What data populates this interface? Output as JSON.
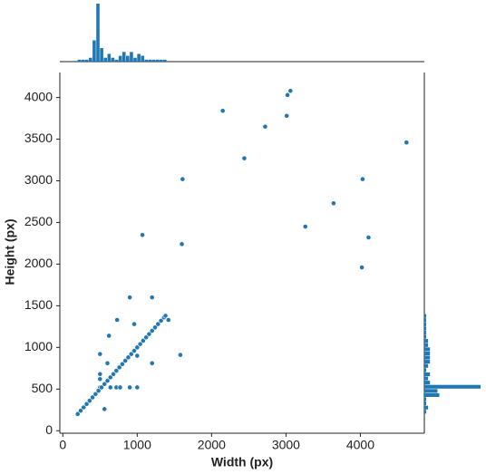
{
  "chart_data": {
    "type": "scatter",
    "x_label": "Width (px)",
    "y_label": "Height (px)",
    "color": "#1f77b4",
    "xlim": [
      -40,
      4860
    ],
    "ylim": [
      -30,
      4300
    ],
    "xticks": [
      0,
      1000,
      2000,
      3000,
      4000
    ],
    "yticks": [
      0,
      500,
      1000,
      1500,
      2000,
      2500,
      3000,
      3500,
      4000
    ],
    "x": [
      2150,
      3060,
      3020,
      3010,
      2720,
      2440,
      4620,
      1610,
      4030,
      3640,
      3260,
      1070,
      4110,
      1600,
      4020,
      900,
      1200,
      730,
      960,
      1420,
      500,
      1580,
      620,
      1200,
      600,
      1000,
      500,
      640,
      720,
      770,
      900,
      1000,
      560,
      500,
      500,
      200,
      240,
      280,
      320,
      360,
      400,
      440,
      480,
      520,
      560,
      600,
      640,
      680,
      720,
      760,
      800,
      840,
      880,
      920,
      960,
      1000,
      1040,
      1080,
      1120,
      1160,
      1200,
      1240,
      1280,
      1320,
      1360,
      1380
    ],
    "y": [
      3840,
      4080,
      4030,
      3780,
      3650,
      3270,
      3460,
      3020,
      3020,
      2730,
      2450,
      2350,
      2320,
      2240,
      1960,
      1600,
      1600,
      1330,
      1280,
      1330,
      920,
      910,
      1140,
      810,
      810,
      900,
      520,
      520,
      520,
      520,
      520,
      520,
      260,
      620,
      680,
      200,
      240,
      280,
      320,
      360,
      400,
      440,
      480,
      520,
      560,
      600,
      640,
      680,
      720,
      760,
      800,
      840,
      880,
      920,
      960,
      1000,
      1040,
      1080,
      1120,
      1160,
      1200,
      1240,
      1280,
      1320,
      1360,
      1380
    ],
    "x_hist": {
      "bins": [
        200,
        250,
        300,
        350,
        400,
        450,
        500,
        550,
        600,
        650,
        700,
        750,
        800,
        850,
        900,
        950,
        1000,
        1050,
        1100,
        1150,
        1200,
        1250,
        1300,
        1350,
        1400
      ],
      "counts": [
        1,
        1,
        1,
        2,
        11,
        30,
        7,
        2,
        4,
        2,
        1,
        3,
        5,
        3,
        5,
        2,
        4,
        3,
        1,
        1,
        1,
        1,
        1,
        1
      ]
    },
    "y_hist": {
      "bins": [
        200,
        250,
        300,
        350,
        400,
        450,
        500,
        550,
        600,
        650,
        700,
        750,
        800,
        850,
        900,
        950,
        1000,
        1050,
        1100,
        1150,
        1200,
        1250,
        1300,
        1350,
        1400
      ],
      "counts": [
        1,
        2,
        1,
        1,
        8,
        7,
        30,
        3,
        2,
        3,
        1,
        2,
        3,
        3,
        3,
        3,
        2,
        2,
        1,
        1,
        1,
        1,
        1,
        1
      ]
    }
  }
}
